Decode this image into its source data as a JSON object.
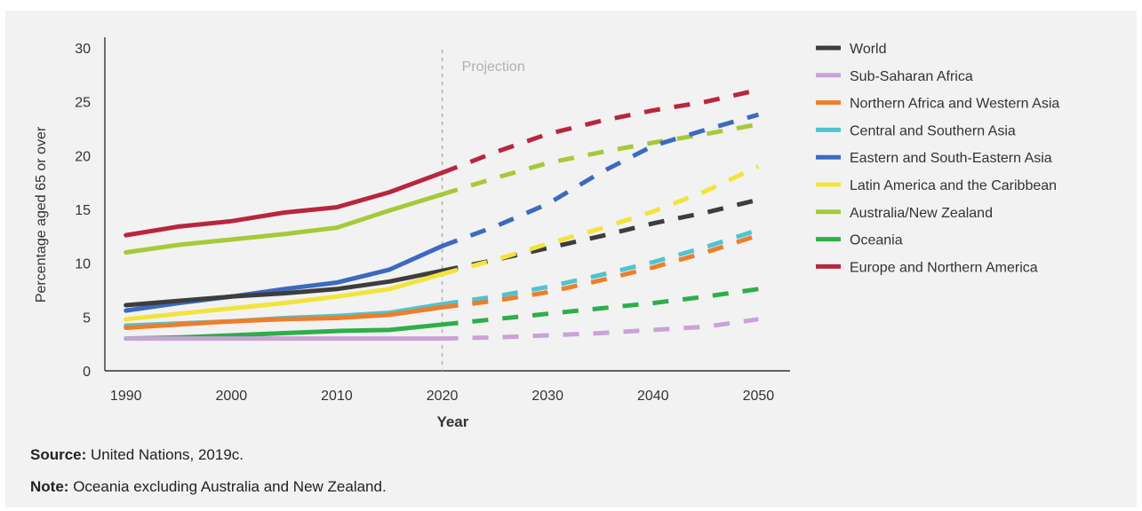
{
  "footnotes": {
    "source_label": "Source:",
    "source_text": "United Nations, 2019c.",
    "note_label": "Note:",
    "note_text": "Oceania excluding Australia and New Zealand."
  },
  "chart_data": {
    "type": "line",
    "title": "",
    "xlabel": "Year",
    "ylabel": "Percentage aged 65 or over",
    "xlim": [
      1988,
      2053
    ],
    "ylim": [
      0,
      30
    ],
    "x_ticks": [
      1990,
      2000,
      2010,
      2020,
      2030,
      2040,
      2050
    ],
    "y_ticks": [
      0,
      5,
      10,
      15,
      20,
      25,
      30
    ],
    "grid": false,
    "legend_position": "right",
    "annotation": {
      "text": "Projection",
      "x": 2020
    },
    "projection_start": 2020,
    "x": [
      1990,
      1995,
      2000,
      2005,
      2010,
      2015,
      2020,
      2025,
      2030,
      2035,
      2040,
      2045,
      2050
    ],
    "series": [
      {
        "name": "Europe and Northern America",
        "color": "#b8263d",
        "values": [
          12.6,
          13.4,
          13.9,
          14.7,
          15.2,
          16.6,
          18.4,
          20.3,
          22.0,
          23.2,
          24.2,
          25.0,
          26.1
        ]
      },
      {
        "name": "Australia/New Zealand",
        "color": "#a6c93a",
        "values": [
          11.0,
          11.7,
          12.2,
          12.7,
          13.3,
          14.9,
          16.4,
          17.9,
          19.3,
          20.3,
          21.2,
          22.0,
          22.9
        ]
      },
      {
        "name": "Eastern and South-Eastern Asia",
        "color": "#3b6bbf",
        "values": [
          5.6,
          6.3,
          6.9,
          7.6,
          8.2,
          9.4,
          11.6,
          13.4,
          15.5,
          18.4,
          20.9,
          22.4,
          23.8
        ]
      },
      {
        "name": "World",
        "color": "#3d3d3d",
        "values": [
          6.1,
          6.5,
          6.9,
          7.2,
          7.6,
          8.3,
          9.3,
          10.3,
          11.4,
          12.5,
          13.7,
          14.7,
          15.9
        ]
      },
      {
        "name": "Latin America and the Caribbean",
        "color": "#f2e43c",
        "values": [
          4.8,
          5.3,
          5.8,
          6.3,
          6.9,
          7.6,
          9.0,
          10.3,
          11.8,
          13.2,
          14.8,
          16.7,
          19.0
        ]
      },
      {
        "name": "Central and Southern Asia",
        "color": "#4fc4cf",
        "values": [
          4.2,
          4.4,
          4.6,
          4.9,
          5.1,
          5.4,
          6.2,
          6.9,
          7.8,
          8.9,
          10.1,
          11.5,
          13.1
        ]
      },
      {
        "name": "Northern Africa and Western Asia",
        "color": "#ef7d2a",
        "values": [
          4.0,
          4.3,
          4.6,
          4.8,
          4.9,
          5.2,
          5.9,
          6.5,
          7.3,
          8.4,
          9.6,
          11.0,
          12.6
        ]
      },
      {
        "name": "Oceania",
        "color": "#2fae4a",
        "values": [
          3.0,
          3.1,
          3.3,
          3.5,
          3.7,
          3.8,
          4.3,
          4.8,
          5.3,
          5.8,
          6.3,
          6.9,
          7.6
        ]
      },
      {
        "name": "Sub-Saharan Africa",
        "color": "#c9a3d6",
        "values": [
          3.0,
          3.0,
          3.0,
          3.0,
          3.0,
          3.0,
          3.0,
          3.1,
          3.3,
          3.5,
          3.8,
          4.1,
          4.8
        ]
      }
    ],
    "legend_order": [
      "World",
      "Sub-Saharan Africa",
      "Northern Africa and Western Asia",
      "Central and Southern Asia",
      "Eastern and South-Eastern Asia",
      "Latin America and the Caribbean",
      "Australia/New Zealand",
      "Oceania",
      "Europe and Northern America"
    ],
    "colors": {
      "axis": "#333333",
      "projection_line": "#b5b5b5",
      "projection_label": "#b0b0b0",
      "background": "#f2f2f2"
    }
  }
}
